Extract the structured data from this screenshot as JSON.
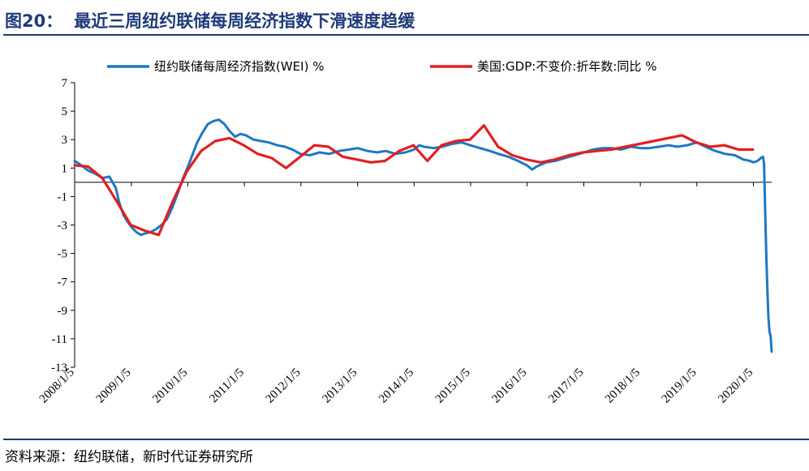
{
  "figure": {
    "number": "图20：",
    "title": "最近三周纽约联储每周经济指数下滑速度趋缓",
    "source": "资料来源：纽约联储，新时代证券研究所"
  },
  "chart_data": {
    "type": "line",
    "xlabel": "",
    "ylabel": "",
    "ylim": [
      -13,
      7
    ],
    "yticks": [
      7,
      5,
      3,
      1,
      -1,
      -3,
      -5,
      -7,
      -9,
      -11,
      -13
    ],
    "xlim": [
      "2008/1/5",
      "2020/5/2"
    ],
    "xticks": [
      "2008/1/5",
      "2009/1/5",
      "2010/1/5",
      "2011/1/5",
      "2012/1/5",
      "2013/1/5",
      "2014/1/5",
      "2015/1/5",
      "2016/1/5",
      "2017/1/5",
      "2018/1/5",
      "2019/1/5",
      "2020/1/5"
    ],
    "legend_position": "top",
    "grid": false,
    "series": [
      {
        "name": "纽约联储每周经济指数(WEI) %",
        "color": "#1f77c4",
        "x": [
          "2008/1/5",
          "2008/2/16",
          "2008/4/5",
          "2008/5/17",
          "2008/7/5",
          "2008/8/16",
          "2008/9/27",
          "2008/10/18",
          "2008/11/15",
          "2008/12/13",
          "2009/1/10",
          "2009/2/7",
          "2009/3/7",
          "2009/4/4",
          "2009/5/9",
          "2009/6/13",
          "2009/7/18",
          "2009/8/22",
          "2009/9/26",
          "2009/10/31",
          "2009/12/5",
          "2010/1/9",
          "2010/2/6",
          "2010/3/6",
          "2010/4/10",
          "2010/5/15",
          "2010/6/19",
          "2010/7/24",
          "2010/8/28",
          "2010/10/2",
          "2010/11/6",
          "2010/12/11",
          "2011/1/15",
          "2011/3/5",
          "2011/4/23",
          "2011/6/11",
          "2011/8/6",
          "2011/9/24",
          "2011/11/12",
          "2011/12/31",
          "2012/3/3",
          "2012/5/5",
          "2012/7/7",
          "2012/9/8",
          "2012/11/10",
          "2013/1/5",
          "2013/3/9",
          "2013/5/11",
          "2013/7/6",
          "2013/9/7",
          "2013/11/9",
          "2014/1/4",
          "2014/2/8",
          "2014/3/8",
          "2014/5/10",
          "2014/7/5",
          "2014/9/6",
          "2014/11/8",
          "2015/1/3",
          "2015/3/7",
          "2015/5/9",
          "2015/7/4",
          "2015/9/5",
          "2015/11/7",
          "2016/1/2",
          "2016/2/6",
          "2016/3/5",
          "2016/5/7",
          "2016/7/2",
          "2016/9/3",
          "2016/11/5",
          "2017/1/7",
          "2017/3/4",
          "2017/5/6",
          "2017/7/1",
          "2017/9/2",
          "2017/11/4",
          "2018/1/6",
          "2018/3/3",
          "2018/5/5",
          "2018/7/7",
          "2018/9/1",
          "2018/11/3",
          "2019/1/5",
          "2019/3/2",
          "2019/5/4",
          "2019/7/6",
          "2019/9/7",
          "2019/11/2",
          "2019/12/14",
          "2020/1/4",
          "2020/2/1",
          "2020/2/22",
          "2020/3/7",
          "2020/3/14",
          "2020/3/21",
          "2020/3/28",
          "2020/4/4",
          "2020/4/11",
          "2020/4/18",
          "2020/4/25",
          "2020/5/2"
        ],
        "values": [
          1.5,
          1.2,
          0.8,
          0.6,
          0.3,
          0.4,
          -0.4,
          -1.4,
          -2.3,
          -2.8,
          -3.2,
          -3.5,
          -3.7,
          -3.6,
          -3.5,
          -3.3,
          -3.0,
          -2.6,
          -1.8,
          -0.8,
          0.3,
          1.2,
          2.0,
          2.8,
          3.5,
          4.1,
          4.3,
          4.4,
          4.1,
          3.6,
          3.2,
          3.4,
          3.3,
          3.0,
          2.9,
          2.8,
          2.6,
          2.5,
          2.3,
          2.0,
          1.9,
          2.1,
          2.0,
          2.2,
          2.3,
          2.4,
          2.2,
          2.1,
          2.2,
          2.0,
          2.1,
          2.3,
          2.6,
          2.5,
          2.4,
          2.5,
          2.7,
          2.8,
          2.6,
          2.4,
          2.2,
          2.0,
          1.8,
          1.5,
          1.2,
          0.9,
          1.1,
          1.4,
          1.5,
          1.7,
          1.9,
          2.1,
          2.3,
          2.4,
          2.4,
          2.3,
          2.5,
          2.4,
          2.4,
          2.5,
          2.6,
          2.5,
          2.6,
          2.8,
          2.5,
          2.2,
          2.0,
          1.9,
          1.6,
          1.5,
          1.4,
          1.5,
          1.7,
          1.8,
          1.3,
          -2.0,
          -5.0,
          -7.5,
          -9.5,
          -10.5,
          -10.8,
          -11.9
        ]
      },
      {
        "name": "美国:GDP:不变价:折年数:同比 %",
        "color": "#e02020",
        "x": [
          "2008/1/5",
          "2008/4/1",
          "2008/7/1",
          "2008/10/1",
          "2009/1/1",
          "2009/4/1",
          "2009/7/1",
          "2009/10/1",
          "2010/1/1",
          "2010/4/1",
          "2010/7/1",
          "2010/10/1",
          "2011/1/1",
          "2011/4/1",
          "2011/7/1",
          "2011/10/1",
          "2012/1/1",
          "2012/4/1",
          "2012/7/1",
          "2012/10/1",
          "2013/1/1",
          "2013/4/1",
          "2013/7/1",
          "2013/10/1",
          "2014/1/1",
          "2014/4/1",
          "2014/7/1",
          "2014/10/1",
          "2015/1/1",
          "2015/4/1",
          "2015/7/1",
          "2015/10/1",
          "2016/1/1",
          "2016/4/1",
          "2016/7/1",
          "2016/10/1",
          "2017/1/1",
          "2017/4/1",
          "2017/7/1",
          "2017/10/1",
          "2018/1/1",
          "2018/4/1",
          "2018/7/1",
          "2018/10/1",
          "2019/1/1",
          "2019/4/1",
          "2019/7/1",
          "2019/10/1",
          "2020/1/1"
        ],
        "values": [
          1.2,
          1.1,
          0.3,
          -1.3,
          -3.0,
          -3.4,
          -3.7,
          -1.3,
          0.8,
          2.2,
          2.9,
          3.1,
          2.6,
          2.0,
          1.7,
          1.0,
          1.8,
          2.6,
          2.5,
          1.8,
          1.6,
          1.4,
          1.5,
          2.2,
          2.6,
          1.5,
          2.6,
          2.9,
          3.0,
          4.0,
          2.5,
          1.9,
          1.6,
          1.4,
          1.6,
          1.9,
          2.1,
          2.2,
          2.3,
          2.5,
          2.7,
          2.9,
          3.1,
          3.3,
          2.8,
          2.5,
          2.6,
          2.3,
          2.3
        ]
      }
    ]
  }
}
